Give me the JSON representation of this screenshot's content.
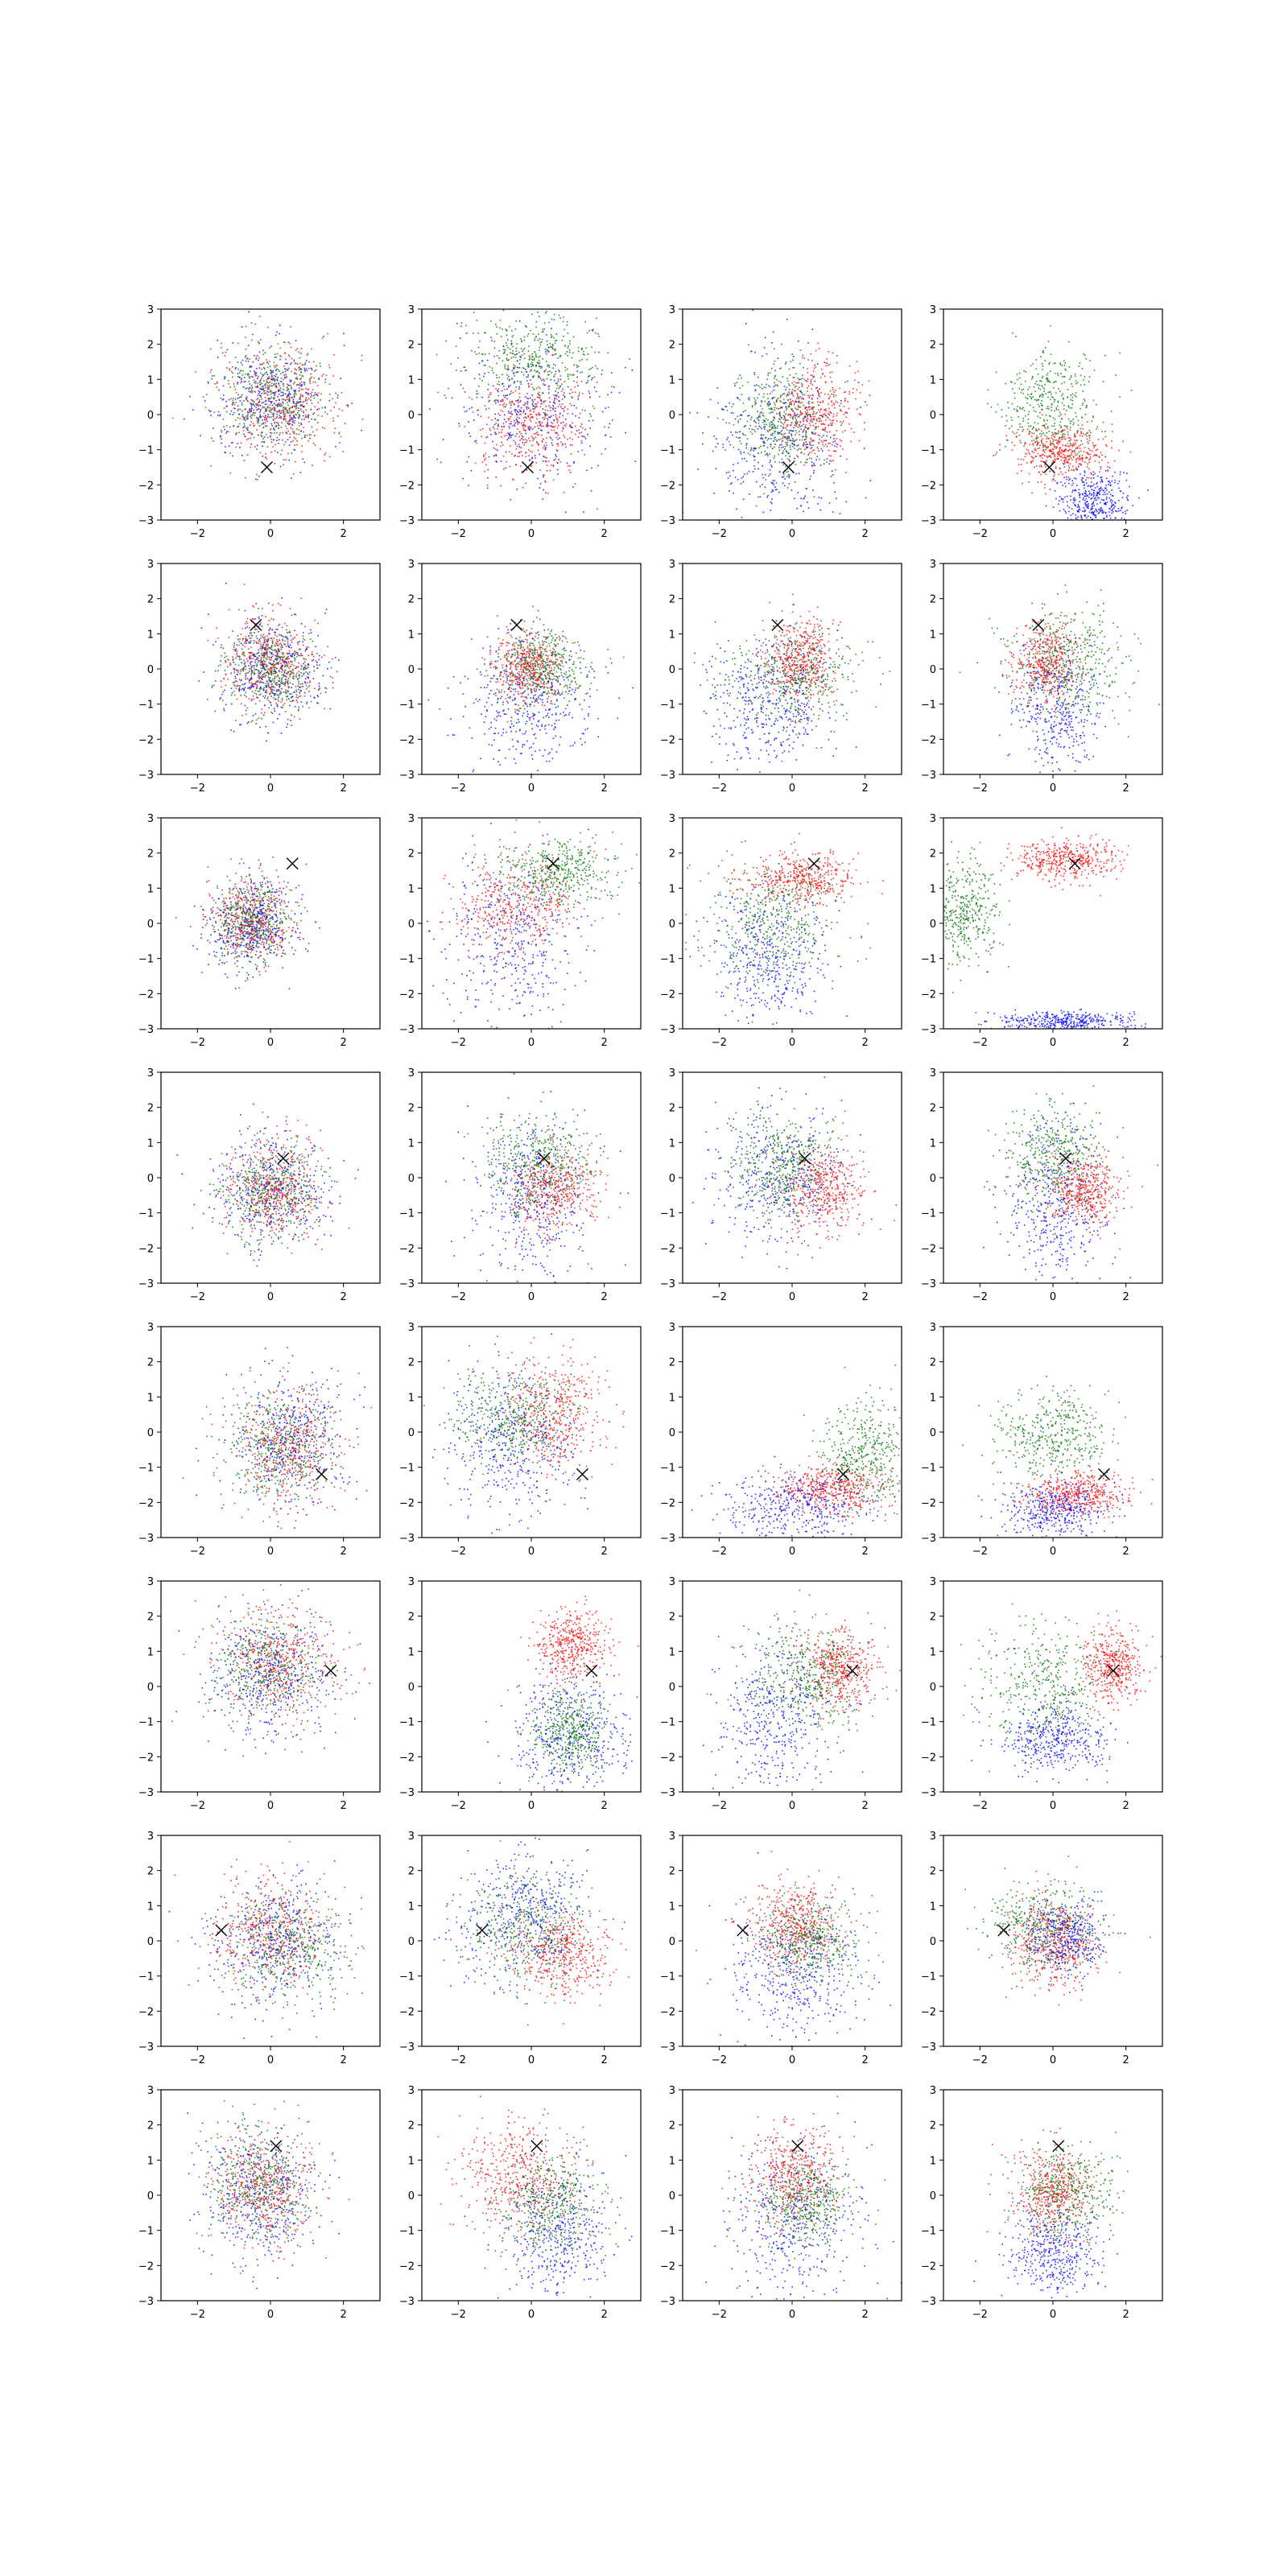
{
  "figure": {
    "rows": 8,
    "cols": 4,
    "panel_type": "scatter"
  },
  "colors": {
    "blue": "#1010ff",
    "green": "#0a7a0a",
    "red": "#ff1010",
    "marker": "#000000"
  },
  "chart_data": {
    "type": "scatter",
    "xlim": [
      -3,
      3
    ],
    "ylim": [
      -3,
      3
    ],
    "xticks": [
      -2,
      0,
      2
    ],
    "yticks": [
      -3,
      -2,
      -1,
      0,
      1,
      2,
      3
    ],
    "xtick_labels": [
      "−2",
      "0",
      "2"
    ],
    "ytick_labels": [
      "−3",
      "−2",
      "−1",
      "0",
      "1",
      "2",
      "3"
    ],
    "series_colors": [
      "blue",
      "green",
      "red"
    ],
    "markers_per_row": [
      [
        -0.1,
        -1.5
      ],
      [
        -0.4,
        1.25
      ],
      [
        0.6,
        1.7
      ],
      [
        0.35,
        0.55
      ],
      [
        1.4,
        -1.2
      ],
      [
        1.65,
        0.45
      ],
      [
        -1.35,
        0.3
      ],
      [
        0.15,
        1.4
      ]
    ],
    "panels": [
      {
        "row": 0,
        "col": 0,
        "clusters": [
          {
            "c": "blue",
            "mx": 0,
            "my": 0.4,
            "sx": 0.8,
            "sy": 0.8
          },
          {
            "c": "green",
            "mx": 0,
            "my": 0.5,
            "sx": 0.8,
            "sy": 0.75
          },
          {
            "c": "red",
            "mx": 0.2,
            "my": 0.4,
            "sx": 0.8,
            "sy": 0.8
          }
        ]
      },
      {
        "row": 0,
        "col": 1,
        "clusters": [
          {
            "c": "blue",
            "mx": 0,
            "my": 0,
            "sx": 1.0,
            "sy": 1.1
          },
          {
            "c": "green",
            "mx": 0,
            "my": 1.6,
            "sx": 0.9,
            "sy": 0.7
          },
          {
            "c": "red",
            "mx": 0,
            "my": -0.2,
            "sx": 0.75,
            "sy": 0.8
          }
        ]
      },
      {
        "row": 0,
        "col": 2,
        "clusters": [
          {
            "c": "blue",
            "mx": -0.4,
            "my": -0.8,
            "sx": 1.0,
            "sy": 1.3
          },
          {
            "c": "green",
            "mx": -0.3,
            "my": -0.1,
            "sx": 0.6,
            "sy": 0.8
          },
          {
            "c": "red",
            "mx": 0.6,
            "my": 0.1,
            "sx": 0.6,
            "sy": 0.7
          }
        ]
      },
      {
        "row": 0,
        "col": 3,
        "clusters": [
          {
            "c": "blue",
            "mx": 1.1,
            "my": -2.5,
            "sx": 0.5,
            "sy": 0.5
          },
          {
            "c": "green",
            "mx": -0.1,
            "my": 0.3,
            "sx": 0.7,
            "sy": 0.8
          },
          {
            "c": "red",
            "mx": 0.2,
            "my": -1.0,
            "sx": 0.6,
            "sy": 0.35
          }
        ]
      },
      {
        "row": 1,
        "col": 0,
        "clusters": [
          {
            "c": "blue",
            "mx": 0,
            "my": 0,
            "sx": 0.75,
            "sy": 0.75
          },
          {
            "c": "green",
            "mx": 0,
            "my": 0,
            "sx": 0.6,
            "sy": 0.6
          },
          {
            "c": "red",
            "mx": 0,
            "my": 0.2,
            "sx": 0.6,
            "sy": 0.65
          }
        ]
      },
      {
        "row": 1,
        "col": 1,
        "clusters": [
          {
            "c": "blue",
            "mx": -0.1,
            "my": -0.9,
            "sx": 0.9,
            "sy": 0.9
          },
          {
            "c": "green",
            "mx": 0.2,
            "my": 0.1,
            "sx": 0.6,
            "sy": 0.55
          },
          {
            "c": "red",
            "mx": -0.1,
            "my": 0.1,
            "sx": 0.45,
            "sy": 0.5
          }
        ]
      },
      {
        "row": 1,
        "col": 2,
        "clusters": [
          {
            "c": "blue",
            "mx": -0.6,
            "my": -0.9,
            "sx": 0.9,
            "sy": 0.9
          },
          {
            "c": "green",
            "mx": 0,
            "my": -0.2,
            "sx": 0.9,
            "sy": 0.7
          },
          {
            "c": "red",
            "mx": 0.2,
            "my": 0.2,
            "sx": 0.5,
            "sy": 0.6
          }
        ]
      },
      {
        "row": 1,
        "col": 3,
        "clusters": [
          {
            "c": "blue",
            "mx": 0.1,
            "my": -1.2,
            "sx": 0.6,
            "sy": 1.0
          },
          {
            "c": "green",
            "mx": 0.4,
            "my": 0.2,
            "sx": 0.8,
            "sy": 0.8
          },
          {
            "c": "red",
            "mx": -0.2,
            "my": 0.2,
            "sx": 0.45,
            "sy": 0.6
          }
        ]
      },
      {
        "row": 2,
        "col": 0,
        "clusters": [
          {
            "c": "blue",
            "mx": -0.5,
            "my": 0,
            "sx": 0.6,
            "sy": 0.65
          },
          {
            "c": "green",
            "mx": -0.5,
            "my": 0.1,
            "sx": 0.55,
            "sy": 0.6
          },
          {
            "c": "red",
            "mx": -0.5,
            "my": 0.1,
            "sx": 0.55,
            "sy": 0.6
          }
        ]
      },
      {
        "row": 2,
        "col": 1,
        "clusters": [
          {
            "c": "blue",
            "mx": -0.5,
            "my": -0.5,
            "sx": 0.9,
            "sy": 1.2
          },
          {
            "c": "green",
            "mx": 0.8,
            "my": 1.5,
            "sx": 0.8,
            "sy": 0.5
          },
          {
            "c": "red",
            "mx": -0.5,
            "my": 0.6,
            "sx": 0.8,
            "sy": 0.7
          }
        ]
      },
      {
        "row": 2,
        "col": 2,
        "clusters": [
          {
            "c": "blue",
            "mx": -0.7,
            "my": -1.0,
            "sx": 0.8,
            "sy": 0.9
          },
          {
            "c": "green",
            "mx": -0.5,
            "my": 0.2,
            "sx": 0.9,
            "sy": 0.9
          },
          {
            "c": "red",
            "mx": 0.2,
            "my": 1.3,
            "sx": 0.8,
            "sy": 0.35
          }
        ]
      },
      {
        "row": 2,
        "col": 3,
        "clusters": [
          {
            "c": "blue",
            "mx": 0.3,
            "my": -2.8,
            "sx": 0.9,
            "sy": 0.15
          },
          {
            "c": "green",
            "mx": -2.5,
            "my": 0.3,
            "sx": 0.5,
            "sy": 0.8
          },
          {
            "c": "red",
            "mx": 0.3,
            "my": 1.8,
            "sx": 0.7,
            "sy": 0.3
          }
        ]
      },
      {
        "row": 3,
        "col": 0,
        "clusters": [
          {
            "c": "blue",
            "mx": 0,
            "my": -0.3,
            "sx": 0.8,
            "sy": 0.8
          },
          {
            "c": "green",
            "mx": 0,
            "my": -0.3,
            "sx": 0.65,
            "sy": 0.7
          },
          {
            "c": "red",
            "mx": 0.1,
            "my": -0.3,
            "sx": 0.65,
            "sy": 0.7
          }
        ]
      },
      {
        "row": 3,
        "col": 1,
        "clusters": [
          {
            "c": "blue",
            "mx": 0,
            "my": -0.5,
            "sx": 0.8,
            "sy": 1.1
          },
          {
            "c": "green",
            "mx": 0.2,
            "my": 0.4,
            "sx": 0.7,
            "sy": 0.7
          },
          {
            "c": "red",
            "mx": 0.6,
            "my": -0.3,
            "sx": 0.6,
            "sy": 0.55
          }
        ]
      },
      {
        "row": 3,
        "col": 2,
        "clusters": [
          {
            "c": "blue",
            "mx": -0.3,
            "my": 0,
            "sx": 0.9,
            "sy": 1.0
          },
          {
            "c": "green",
            "mx": -0.3,
            "my": 0.4,
            "sx": 0.7,
            "sy": 0.7
          },
          {
            "c": "red",
            "mx": 0.9,
            "my": -0.3,
            "sx": 0.6,
            "sy": 0.6
          }
        ]
      },
      {
        "row": 3,
        "col": 3,
        "clusters": [
          {
            "c": "blue",
            "mx": 0.1,
            "my": -0.8,
            "sx": 0.7,
            "sy": 1.1
          },
          {
            "c": "green",
            "mx": 0,
            "my": 0.5,
            "sx": 0.65,
            "sy": 0.7
          },
          {
            "c": "red",
            "mx": 0.9,
            "my": -0.4,
            "sx": 0.45,
            "sy": 0.5
          }
        ]
      },
      {
        "row": 4,
        "col": 0,
        "clusters": [
          {
            "c": "blue",
            "mx": 0.5,
            "my": -0.2,
            "sx": 0.8,
            "sy": 0.9
          },
          {
            "c": "green",
            "mx": 0.2,
            "my": -0.3,
            "sx": 0.7,
            "sy": 0.8
          },
          {
            "c": "red",
            "mx": 0.5,
            "my": -0.4,
            "sx": 0.7,
            "sy": 0.8
          }
        ]
      },
      {
        "row": 4,
        "col": 1,
        "clusters": [
          {
            "c": "blue",
            "mx": -0.5,
            "my": -0.3,
            "sx": 0.9,
            "sy": 1.1
          },
          {
            "c": "green",
            "mx": -0.5,
            "my": 0.5,
            "sx": 0.8,
            "sy": 0.7
          },
          {
            "c": "red",
            "mx": 0.6,
            "my": 0.6,
            "sx": 0.7,
            "sy": 0.8
          }
        ]
      },
      {
        "row": 4,
        "col": 2,
        "clusters": [
          {
            "c": "blue",
            "mx": 0.1,
            "my": -2.1,
            "sx": 1.0,
            "sy": 0.5
          },
          {
            "c": "green",
            "mx": 2.0,
            "my": -0.6,
            "sx": 0.6,
            "sy": 0.8
          },
          {
            "c": "red",
            "mx": 1.0,
            "my": -1.6,
            "sx": 0.8,
            "sy": 0.35
          }
        ]
      },
      {
        "row": 4,
        "col": 3,
        "clusters": [
          {
            "c": "blue",
            "mx": 0,
            "my": -2.2,
            "sx": 0.7,
            "sy": 0.4
          },
          {
            "c": "green",
            "mx": 0,
            "my": 0,
            "sx": 0.75,
            "sy": 0.6
          },
          {
            "c": "red",
            "mx": 0.7,
            "my": -1.7,
            "sx": 0.7,
            "sy": 0.3
          }
        ]
      },
      {
        "row": 5,
        "col": 0,
        "clusters": [
          {
            "c": "blue",
            "mx": 0,
            "my": 0.3,
            "sx": 0.9,
            "sy": 0.9
          },
          {
            "c": "green",
            "mx": -0.2,
            "my": 0.5,
            "sx": 0.8,
            "sy": 0.8
          },
          {
            "c": "red",
            "mx": 0.2,
            "my": 0.7,
            "sx": 0.8,
            "sy": 0.8
          }
        ]
      },
      {
        "row": 5,
        "col": 1,
        "clusters": [
          {
            "c": "blue",
            "mx": 1.0,
            "my": -1.4,
            "sx": 0.8,
            "sy": 0.9
          },
          {
            "c": "green",
            "mx": 1.0,
            "my": -1.3,
            "sx": 0.5,
            "sy": 0.6
          },
          {
            "c": "red",
            "mx": 1.1,
            "my": 1.2,
            "sx": 0.5,
            "sy": 0.5
          }
        ]
      },
      {
        "row": 5,
        "col": 2,
        "clusters": [
          {
            "c": "blue",
            "mx": -0.4,
            "my": -0.9,
            "sx": 0.8,
            "sy": 1.1
          },
          {
            "c": "green",
            "mx": 0.3,
            "my": 0.3,
            "sx": 0.8,
            "sy": 0.8
          },
          {
            "c": "red",
            "mx": 1.3,
            "my": 0.5,
            "sx": 0.5,
            "sy": 0.55
          }
        ]
      },
      {
        "row": 5,
        "col": 3,
        "clusters": [
          {
            "c": "blue",
            "mx": 0,
            "my": -1.5,
            "sx": 0.75,
            "sy": 0.5
          },
          {
            "c": "green",
            "mx": -0.2,
            "my": 0.1,
            "sx": 0.8,
            "sy": 0.8
          },
          {
            "c": "red",
            "mx": 1.6,
            "my": 0.6,
            "sx": 0.4,
            "sy": 0.55
          }
        ]
      },
      {
        "row": 6,
        "col": 0,
        "clusters": [
          {
            "c": "blue",
            "mx": 0,
            "my": 0,
            "sx": 0.9,
            "sy": 0.9
          },
          {
            "c": "green",
            "mx": 0.5,
            "my": -0.1,
            "sx": 0.8,
            "sy": 0.8
          },
          {
            "c": "red",
            "mx": 0,
            "my": 0.3,
            "sx": 0.8,
            "sy": 0.8
          }
        ]
      },
      {
        "row": 6,
        "col": 1,
        "clusters": [
          {
            "c": "blue",
            "mx": -0.2,
            "my": 0.7,
            "sx": 0.9,
            "sy": 0.9
          },
          {
            "c": "green",
            "mx": -0.2,
            "my": 0.3,
            "sx": 0.8,
            "sy": 0.8
          },
          {
            "c": "red",
            "mx": 0.8,
            "my": -0.4,
            "sx": 0.7,
            "sy": 0.6
          }
        ]
      },
      {
        "row": 6,
        "col": 2,
        "clusters": [
          {
            "c": "blue",
            "mx": 0,
            "my": -1.0,
            "sx": 0.9,
            "sy": 1.0
          },
          {
            "c": "green",
            "mx": 0.5,
            "my": 0,
            "sx": 0.7,
            "sy": 0.6
          },
          {
            "c": "red",
            "mx": 0,
            "my": 0.5,
            "sx": 0.6,
            "sy": 0.6
          }
        ]
      },
      {
        "row": 6,
        "col": 3,
        "clusters": [
          {
            "c": "blue",
            "mx": 0.3,
            "my": 0.1,
            "sx": 0.55,
            "sy": 0.5
          },
          {
            "c": "green",
            "mx": -0.3,
            "my": 0.4,
            "sx": 0.8,
            "sy": 0.6
          },
          {
            "c": "red",
            "mx": 0,
            "my": 0,
            "sx": 0.55,
            "sy": 0.7
          }
        ]
      },
      {
        "row": 7,
        "col": 0,
        "clusters": [
          {
            "c": "blue",
            "mx": -0.3,
            "my": 0,
            "sx": 0.8,
            "sy": 0.9
          },
          {
            "c": "green",
            "mx": -0.3,
            "my": 0.3,
            "sx": 0.7,
            "sy": 0.8
          },
          {
            "c": "red",
            "mx": -0.2,
            "my": 0.3,
            "sx": 0.7,
            "sy": 0.8
          }
        ]
      },
      {
        "row": 7,
        "col": 1,
        "clusters": [
          {
            "c": "blue",
            "mx": 0.7,
            "my": -1.0,
            "sx": 0.8,
            "sy": 0.9
          },
          {
            "c": "green",
            "mx": 0.5,
            "my": -0.2,
            "sx": 0.7,
            "sy": 0.8
          },
          {
            "c": "red",
            "mx": -0.4,
            "my": 0.5,
            "sx": 0.8,
            "sy": 0.8
          }
        ]
      },
      {
        "row": 7,
        "col": 2,
        "clusters": [
          {
            "c": "blue",
            "mx": 0,
            "my": -0.7,
            "sx": 0.9,
            "sy": 1.2
          },
          {
            "c": "green",
            "mx": 0.3,
            "my": -0.2,
            "sx": 0.6,
            "sy": 0.6
          },
          {
            "c": "red",
            "mx": 0,
            "my": 0.6,
            "sx": 0.6,
            "sy": 0.7
          }
        ]
      },
      {
        "row": 7,
        "col": 3,
        "clusters": [
          {
            "c": "blue",
            "mx": 0,
            "my": -1.6,
            "sx": 0.6,
            "sy": 0.7
          },
          {
            "c": "green",
            "mx": 0.3,
            "my": 0.1,
            "sx": 0.7,
            "sy": 0.7
          },
          {
            "c": "red",
            "mx": 0,
            "my": 0.1,
            "sx": 0.55,
            "sy": 0.6
          }
        ]
      }
    ]
  }
}
